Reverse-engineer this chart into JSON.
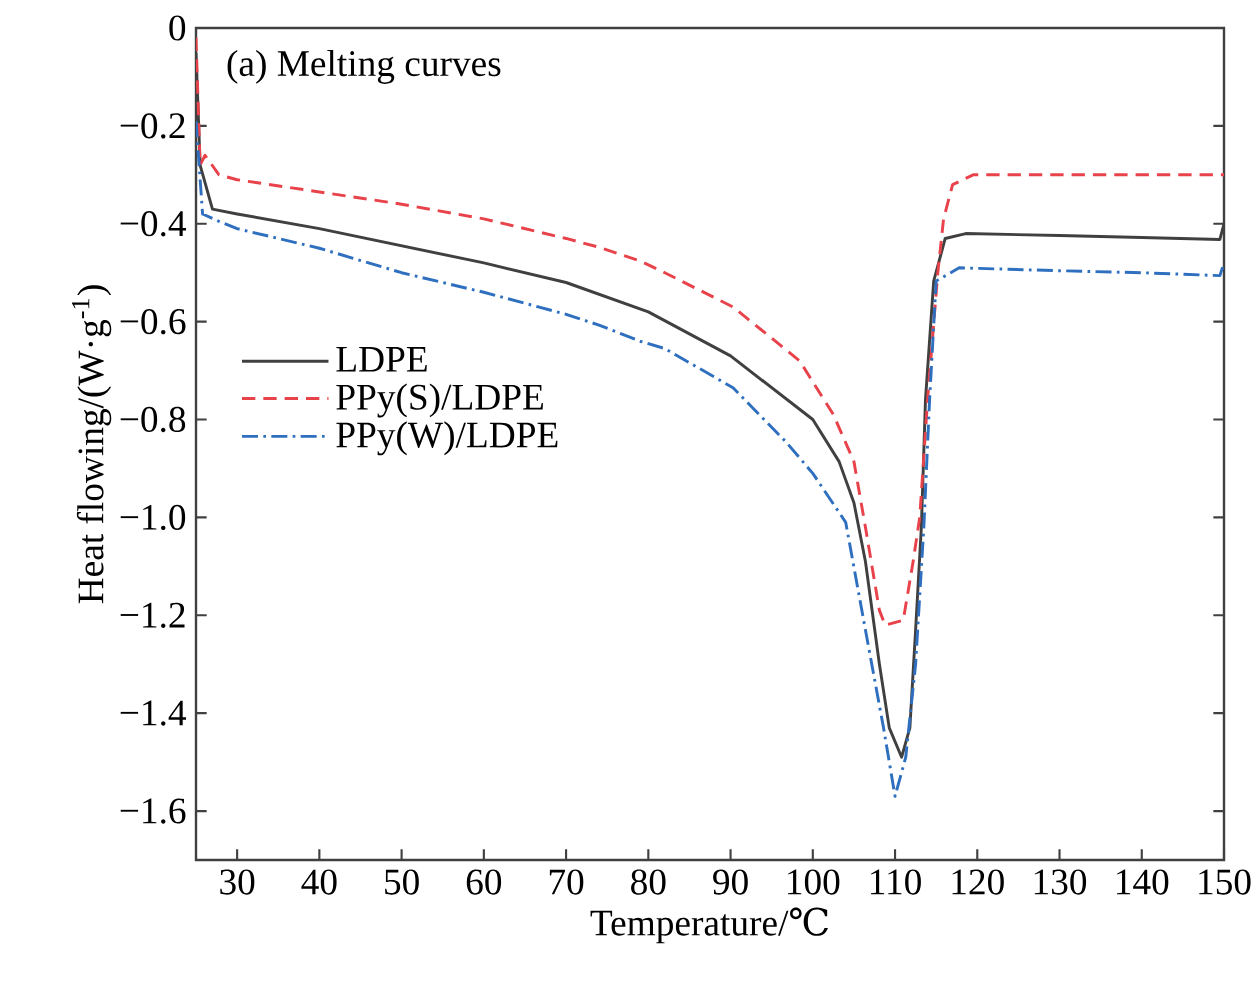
{
  "chart_data": {
    "type": "line",
    "title": "(a) Melting curves",
    "xlabel": "Temperature/℃",
    "ylabel": "Heat flowing/(W·g$^{-1}$)",
    "xlim": [
      25,
      150
    ],
    "ylim": [
      -1.7,
      0
    ],
    "xticks": [
      30,
      40,
      50,
      60,
      70,
      80,
      90,
      100,
      110,
      120,
      130,
      140,
      150
    ],
    "yticks": [
      {
        "value": 0,
        "label": "0"
      },
      {
        "value": -0.2,
        "label": "−0.2"
      },
      {
        "value": -0.4,
        "label": "−0.4"
      },
      {
        "value": -0.6,
        "label": "−0.6"
      },
      {
        "value": -0.8,
        "label": "−0.8"
      },
      {
        "value": -1.0,
        "label": "−1.0"
      },
      {
        "value": -1.2,
        "label": "−1.2"
      },
      {
        "value": -1.4,
        "label": "−1.4"
      },
      {
        "value": -1.6,
        "label": "−1.6"
      }
    ],
    "legend": "left",
    "grid": false,
    "marker": "none",
    "series": [
      {
        "name": "LDPE",
        "color": "#404040",
        "line_style": "solid",
        "x": [
          25,
          25.5,
          27,
          30,
          40,
          50,
          60,
          70,
          80,
          90,
          100,
          103.2,
          105,
          106.4,
          108.1,
          109.3,
          110.8,
          111.8,
          112.5,
          113.2,
          113.7,
          114.7,
          116.1,
          118.6,
          130,
          140,
          149.5,
          150
        ],
        "values": [
          -0.05,
          -0.28,
          -0.37,
          -0.38,
          -0.41,
          -0.445,
          -0.48,
          -0.52,
          -0.58,
          -0.67,
          -0.8,
          -0.886,
          -0.97,
          -1.09,
          -1.3,
          -1.43,
          -1.49,
          -1.43,
          -1.23,
          -1.02,
          -0.76,
          -0.517,
          -0.43,
          -0.42,
          -0.424,
          -0.428,
          -0.432,
          -0.4
        ]
      },
      {
        "name": "PPy(S)/LDPE",
        "color": "#e8424a",
        "line_style": "dashed",
        "x": [
          25,
          25.5,
          26.1,
          27.8,
          30,
          40,
          50,
          60,
          70,
          74,
          79,
          82,
          90.3,
          98.4,
          102.5,
          105,
          106.4,
          108.1,
          108.8,
          111,
          112.2,
          113,
          114,
          115.2,
          115.9,
          117,
          119.5,
          130,
          140,
          150
        ],
        "values": [
          -0.02,
          -0.28,
          -0.26,
          -0.3,
          -0.31,
          -0.335,
          -0.36,
          -0.39,
          -0.43,
          -0.448,
          -0.476,
          -0.5,
          -0.57,
          -0.68,
          -0.79,
          -0.886,
          -1.02,
          -1.19,
          -1.22,
          -1.21,
          -1.09,
          -1.0,
          -0.75,
          -0.5,
          -0.39,
          -0.32,
          -0.3,
          -0.3,
          -0.3,
          -0.3
        ]
      },
      {
        "name": "PPy(W)/LDPE",
        "color": "#2f6fbf",
        "line_style": "dashdot",
        "x": [
          25,
          25.8,
          27.8,
          30,
          40,
          50,
          60,
          70,
          74,
          79,
          82,
          90.3,
          96.7,
          100,
          104,
          106.4,
          108.6,
          110,
          111.3,
          112.5,
          113.5,
          114.2,
          115,
          117.8,
          130,
          140,
          149.5,
          150
        ],
        "values": [
          -0.19,
          -0.38,
          -0.395,
          -0.41,
          -0.45,
          -0.5,
          -0.54,
          -0.585,
          -0.607,
          -0.64,
          -0.655,
          -0.735,
          -0.845,
          -0.91,
          -1.01,
          -1.23,
          -1.43,
          -1.57,
          -1.49,
          -1.3,
          -1.02,
          -0.76,
          -0.517,
          -0.49,
          -0.496,
          -0.5,
          -0.506,
          -0.48
        ]
      }
    ]
  }
}
